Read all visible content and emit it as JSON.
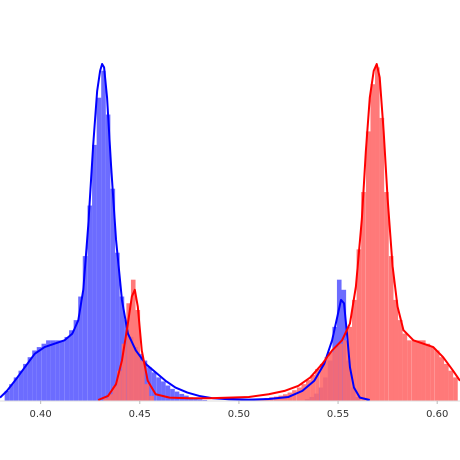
{
  "chart_data": {
    "type": "histogram",
    "title": "",
    "xlabel": "",
    "ylabel": "",
    "xlim": [
      0.3795,
      0.6115
    ],
    "ylim": [
      0,
      1.0
    ],
    "grid": false,
    "legend": "none",
    "x_ticks": [
      {
        "value": 0.4,
        "label": "0.40"
      },
      {
        "value": 0.45,
        "label": "0.45"
      },
      {
        "value": 0.5,
        "label": "0.50"
      },
      {
        "value": 0.55,
        "label": "0.55"
      },
      {
        "value": 0.6,
        "label": "0.60"
      }
    ],
    "bin_width": 0.00232,
    "series": [
      {
        "color": "#0000ff",
        "fill_color": "#5c5cff",
        "bins": [
          [
            0.383,
            0.03
          ],
          [
            0.3853,
            0.05
          ],
          [
            0.3876,
            0.07
          ],
          [
            0.39,
            0.09
          ],
          [
            0.3923,
            0.11
          ],
          [
            0.3946,
            0.13
          ],
          [
            0.3969,
            0.15
          ],
          [
            0.3992,
            0.16
          ],
          [
            0.4016,
            0.17
          ],
          [
            0.4039,
            0.18
          ],
          [
            0.4062,
            0.18
          ],
          [
            0.4085,
            0.18
          ],
          [
            0.4108,
            0.18
          ],
          [
            0.4132,
            0.19
          ],
          [
            0.4155,
            0.21
          ],
          [
            0.4178,
            0.24
          ],
          [
            0.4201,
            0.31
          ],
          [
            0.4224,
            0.43
          ],
          [
            0.4248,
            0.58
          ],
          [
            0.4271,
            0.76
          ],
          [
            0.4294,
            0.9
          ],
          [
            0.4317,
            0.98
          ],
          [
            0.434,
            0.85
          ],
          [
            0.4364,
            0.63
          ],
          [
            0.4387,
            0.44
          ],
          [
            0.441,
            0.31
          ],
          [
            0.4433,
            0.24
          ],
          [
            0.4456,
            0.19
          ],
          [
            0.448,
            0.16
          ],
          [
            0.4503,
            0.14
          ],
          [
            0.4526,
            0.12
          ],
          [
            0.4549,
            0.1
          ],
          [
            0.4572,
            0.085
          ],
          [
            0.4596,
            0.07
          ],
          [
            0.4619,
            0.058
          ],
          [
            0.4642,
            0.046
          ],
          [
            0.4665,
            0.036
          ],
          [
            0.4688,
            0.028
          ],
          [
            0.4712,
            0.021
          ],
          [
            0.4735,
            0.016
          ],
          [
            0.4758,
            0.011
          ],
          [
            0.4781,
            0.008
          ],
          [
            0.4804,
            0.005
          ],
          [
            0.4828,
            0.003
          ],
          [
            0.5344,
            0.006
          ],
          [
            0.5367,
            0.012
          ],
          [
            0.539,
            0.022
          ],
          [
            0.5413,
            0.04
          ],
          [
            0.5436,
            0.07
          ],
          [
            0.546,
            0.12
          ],
          [
            0.5483,
            0.22
          ],
          [
            0.5506,
            0.36
          ],
          [
            0.5529,
            0.33
          ],
          [
            0.5552,
            0.12
          ],
          [
            0.5576,
            0.04
          ],
          [
            0.5599,
            0.012
          ]
        ],
        "kde_x": [
          0.3795,
          0.383,
          0.387,
          0.392,
          0.397,
          0.402,
          0.407,
          0.412,
          0.416,
          0.419,
          0.4215,
          0.424,
          0.4265,
          0.4285,
          0.43,
          0.431,
          0.432,
          0.4335,
          0.4355,
          0.438,
          0.441,
          0.444,
          0.448,
          0.453,
          0.458,
          0.463,
          0.468,
          0.474,
          0.48,
          0.487,
          0.495,
          0.505,
          0.515,
          0.525,
          0.532,
          0.538,
          0.543,
          0.547,
          0.55,
          0.5515,
          0.553,
          0.5545,
          0.556,
          0.558,
          0.561,
          0.566
        ],
        "kde_y": [
          0.01,
          0.03,
          0.06,
          0.1,
          0.14,
          0.16,
          0.17,
          0.18,
          0.2,
          0.24,
          0.33,
          0.52,
          0.76,
          0.92,
          0.98,
          1.0,
          0.99,
          0.9,
          0.7,
          0.48,
          0.3,
          0.2,
          0.15,
          0.11,
          0.085,
          0.06,
          0.04,
          0.025,
          0.015,
          0.008,
          0.005,
          0.004,
          0.006,
          0.012,
          0.03,
          0.06,
          0.11,
          0.18,
          0.26,
          0.3,
          0.29,
          0.2,
          0.1,
          0.04,
          0.01,
          0.003
        ]
      },
      {
        "color": "#ff0000",
        "fill_color": "#ff6a6a",
        "bins": [
          [
            0.4328,
            0.008
          ],
          [
            0.4351,
            0.02
          ],
          [
            0.4374,
            0.045
          ],
          [
            0.4397,
            0.09
          ],
          [
            0.442,
            0.17
          ],
          [
            0.4444,
            0.29
          ],
          [
            0.4467,
            0.36
          ],
          [
            0.449,
            0.27
          ],
          [
            0.4513,
            0.12
          ],
          [
            0.4536,
            0.05
          ],
          [
            0.456,
            0.015
          ],
          [
            0.5072,
            0.003
          ],
          [
            0.5095,
            0.005
          ],
          [
            0.5118,
            0.007
          ],
          [
            0.5141,
            0.009
          ],
          [
            0.5164,
            0.011
          ],
          [
            0.5188,
            0.013
          ],
          [
            0.5211,
            0.016
          ],
          [
            0.5234,
            0.02
          ],
          [
            0.5257,
            0.025
          ],
          [
            0.528,
            0.032
          ],
          [
            0.5304,
            0.04
          ],
          [
            0.5327,
            0.05
          ],
          [
            0.535,
            0.062
          ],
          [
            0.5373,
            0.077
          ],
          [
            0.5396,
            0.095
          ],
          [
            0.542,
            0.11
          ],
          [
            0.5443,
            0.13
          ],
          [
            0.5466,
            0.145
          ],
          [
            0.5489,
            0.16
          ],
          [
            0.5512,
            0.17
          ],
          [
            0.5536,
            0.18
          ],
          [
            0.5559,
            0.22
          ],
          [
            0.5582,
            0.3
          ],
          [
            0.5605,
            0.45
          ],
          [
            0.5628,
            0.62
          ],
          [
            0.5652,
            0.8
          ],
          [
            0.5675,
            0.94
          ],
          [
            0.5698,
            0.99
          ],
          [
            0.5721,
            0.84
          ],
          [
            0.5744,
            0.62
          ],
          [
            0.5768,
            0.43
          ],
          [
            0.5791,
            0.3
          ],
          [
            0.5814,
            0.24
          ],
          [
            0.5837,
            0.2
          ],
          [
            0.586,
            0.18
          ],
          [
            0.5884,
            0.18
          ],
          [
            0.5907,
            0.18
          ],
          [
            0.593,
            0.18
          ],
          [
            0.5953,
            0.17
          ],
          [
            0.5976,
            0.16
          ],
          [
            0.6,
            0.15
          ],
          [
            0.6023,
            0.13
          ],
          [
            0.6046,
            0.11
          ],
          [
            0.6069,
            0.09
          ],
          [
            0.6092,
            0.07
          ]
        ],
        "kde_x": [
          0.429,
          0.434,
          0.438,
          0.441,
          0.444,
          0.446,
          0.4475,
          0.449,
          0.451,
          0.454,
          0.458,
          0.465,
          0.475,
          0.485,
          0.495,
          0.505,
          0.515,
          0.523,
          0.53,
          0.536,
          0.542,
          0.547,
          0.552,
          0.556,
          0.559,
          0.562,
          0.564,
          0.566,
          0.568,
          0.5695,
          0.571,
          0.573,
          0.575,
          0.5775,
          0.58,
          0.583,
          0.588,
          0.593,
          0.598,
          0.603,
          0.608,
          0.6115
        ],
        "kde_y": [
          0.003,
          0.015,
          0.05,
          0.12,
          0.23,
          0.31,
          0.33,
          0.28,
          0.15,
          0.06,
          0.02,
          0.01,
          0.008,
          0.008,
          0.01,
          0.012,
          0.02,
          0.03,
          0.045,
          0.07,
          0.11,
          0.15,
          0.18,
          0.23,
          0.34,
          0.54,
          0.74,
          0.9,
          0.98,
          1.0,
          0.96,
          0.8,
          0.6,
          0.4,
          0.28,
          0.21,
          0.18,
          0.17,
          0.16,
          0.13,
          0.09,
          0.06
        ]
      }
    ]
  }
}
